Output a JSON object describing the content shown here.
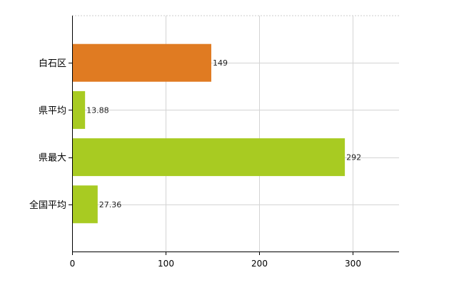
{
  "chart_data": {
    "type": "bar",
    "orientation": "horizontal",
    "categories": [
      "白石区",
      "県平均",
      "県最大",
      "全国平均"
    ],
    "values": [
      149,
      13.88,
      292,
      27.36
    ],
    "value_labels": [
      "149",
      "13.88",
      "292",
      "27.36"
    ],
    "colors": [
      "#E07B22",
      "#A8CB22",
      "#A8CB22",
      "#A8CB22"
    ],
    "xlim": [
      0,
      350
    ],
    "xticks": [
      0,
      100,
      200,
      300
    ],
    "xtick_labels": [
      "0",
      "100",
      "200",
      "300"
    ],
    "grid": true,
    "title": "",
    "xlabel": "",
    "ylabel": ""
  }
}
